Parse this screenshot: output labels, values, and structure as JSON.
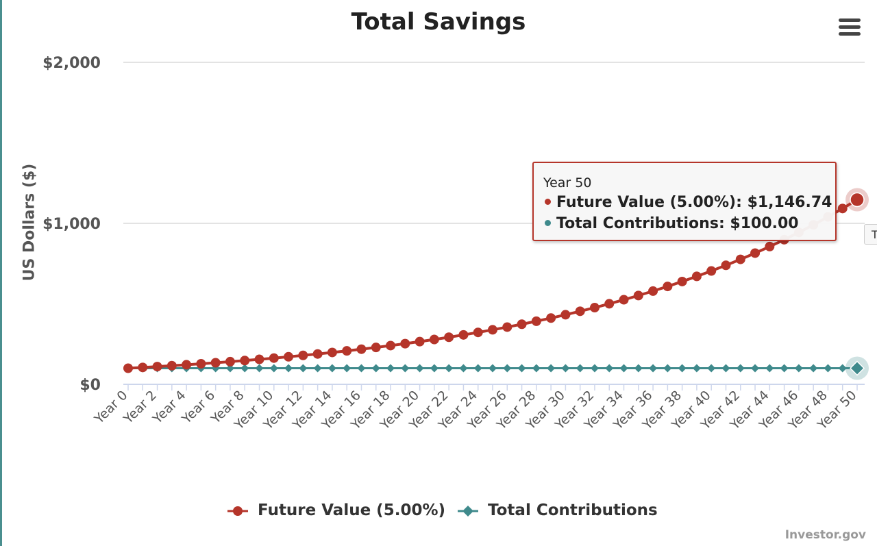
{
  "chart_data": {
    "type": "line",
    "title": "Total Savings",
    "ylabel": "US Dollars ($)",
    "xlabel": "",
    "ylim": [
      0,
      2000
    ],
    "yticks": [
      "$0",
      "$1,000",
      "$2,000"
    ],
    "ytick_values": [
      0,
      1000,
      2000
    ],
    "categories": [
      "Year 0",
      "Year 1",
      "Year 2",
      "Year 3",
      "Year 4",
      "Year 5",
      "Year 6",
      "Year 7",
      "Year 8",
      "Year 9",
      "Year 10",
      "Year 11",
      "Year 12",
      "Year 13",
      "Year 14",
      "Year 15",
      "Year 16",
      "Year 17",
      "Year 18",
      "Year 19",
      "Year 20",
      "Year 21",
      "Year 22",
      "Year 23",
      "Year 24",
      "Year 25",
      "Year 26",
      "Year 27",
      "Year 28",
      "Year 29",
      "Year 30",
      "Year 31",
      "Year 32",
      "Year 33",
      "Year 34",
      "Year 35",
      "Year 36",
      "Year 37",
      "Year 38",
      "Year 39",
      "Year 40",
      "Year 41",
      "Year 42",
      "Year 43",
      "Year 44",
      "Year 45",
      "Year 46",
      "Year 47",
      "Year 48",
      "Year 49",
      "Year 50"
    ],
    "xtick_labels": [
      "Year 0",
      "Year 2",
      "Year 4",
      "Year 6",
      "Year 8",
      "Year 10",
      "Year 12",
      "Year 14",
      "Year 16",
      "Year 18",
      "Year 20",
      "Year 22",
      "Year 24",
      "Year 26",
      "Year 28",
      "Year 30",
      "Year 32",
      "Year 34",
      "Year 36",
      "Year 38",
      "Year 40",
      "Year 42",
      "Year 44",
      "Year 46",
      "Year 48",
      "Year 50"
    ],
    "series": [
      {
        "name": "Future Value (5.00%)",
        "color": "#b5352a",
        "marker": "circle",
        "values": [
          100.0,
          105.0,
          110.25,
          115.76,
          121.55,
          127.63,
          134.01,
          140.71,
          147.75,
          155.13,
          162.89,
          171.03,
          179.59,
          188.56,
          197.99,
          207.89,
          218.29,
          229.2,
          240.66,
          252.7,
          265.33,
          278.6,
          292.53,
          307.15,
          322.51,
          338.64,
          355.57,
          373.35,
          392.01,
          411.61,
          432.19,
          453.8,
          476.49,
          500.32,
          525.33,
          551.6,
          579.18,
          608.14,
          638.55,
          670.48,
          704.0,
          739.2,
          776.16,
          814.97,
          855.72,
          898.5,
          943.43,
          990.6,
          1040.13,
          1092.14,
          1146.74
        ]
      },
      {
        "name": "Total Contributions",
        "color": "#3f8a8c",
        "marker": "diamond",
        "values": [
          100,
          100,
          100,
          100,
          100,
          100,
          100,
          100,
          100,
          100,
          100,
          100,
          100,
          100,
          100,
          100,
          100,
          100,
          100,
          100,
          100,
          100,
          100,
          100,
          100,
          100,
          100,
          100,
          100,
          100,
          100,
          100,
          100,
          100,
          100,
          100,
          100,
          100,
          100,
          100,
          100,
          100,
          100,
          100,
          100,
          100,
          100,
          100,
          100,
          100,
          100
        ]
      }
    ],
    "legend_position": "bottom",
    "grid": true,
    "tooltip": {
      "header": "Year 50",
      "rows": [
        {
          "label": "Future Value (5.00%)",
          "value": "$1,146.74"
        },
        {
          "label": "Total Contributions",
          "value": "$100.00"
        }
      ]
    },
    "credit": "Investor.gov"
  },
  "colors": {
    "future_value": "#b5352a",
    "contributions": "#3f8a8c"
  },
  "icons": {
    "menu": "hamburger-menu-icon"
  }
}
